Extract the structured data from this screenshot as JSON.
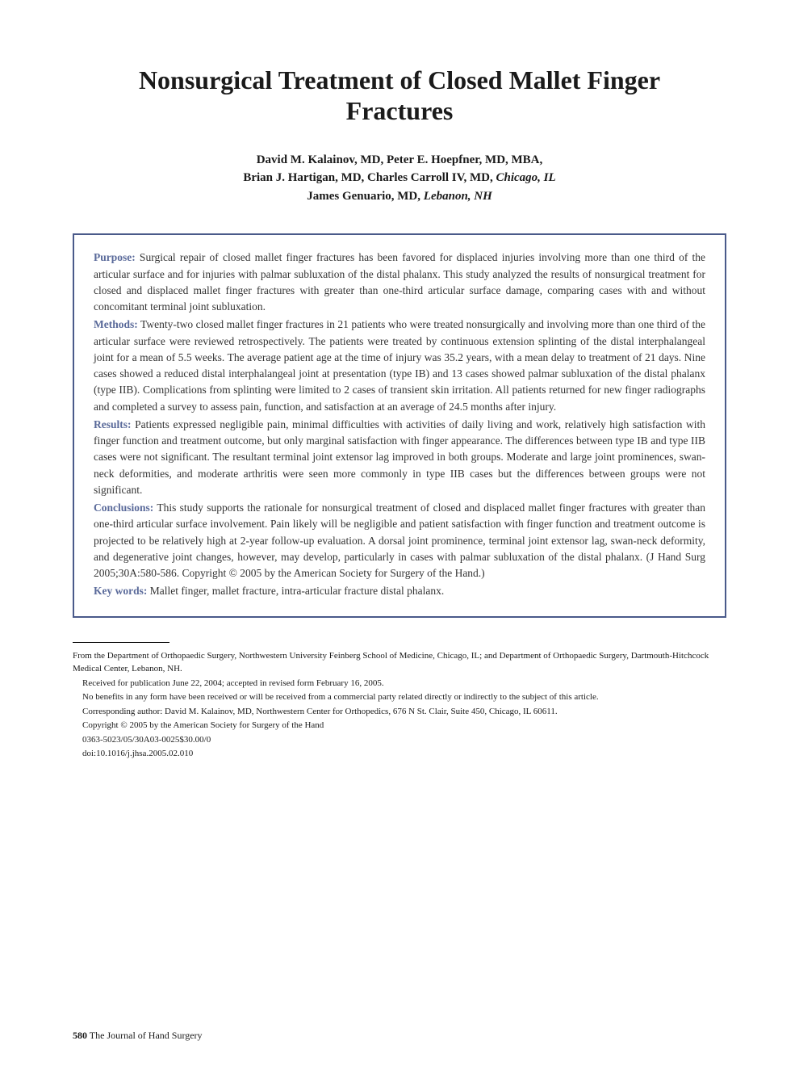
{
  "title": "Nonsurgical Treatment of Closed Mallet Finger Fractures",
  "authors": {
    "line1": "David M. Kalainov, MD, Peter E. Hoepfner, MD, MBA,",
    "line2_names": "Brian J. Hartigan, MD, Charles Carroll IV, MD, ",
    "line2_loc": "Chicago, IL",
    "line3_names": "James Genuario, MD, ",
    "line3_loc": "Lebanon, NH"
  },
  "abstract": {
    "purpose_label": "Purpose:",
    "purpose": " Surgical repair of closed mallet finger fractures has been favored for displaced injuries involving more than one third of the articular surface and for injuries with palmar subluxation of the distal phalanx. This study analyzed the results of nonsurgical treatment for closed and displaced mallet finger fractures with greater than one-third articular surface damage, comparing cases with and without concomitant terminal joint subluxation.",
    "methods_label": "Methods:",
    "methods": " Twenty-two closed mallet finger fractures in 21 patients who were treated nonsurgically and involving more than one third of the articular surface were reviewed retrospectively. The patients were treated by continuous extension splinting of the distal interphalangeal joint for a mean of 5.5 weeks. The average patient age at the time of injury was 35.2 years, with a mean delay to treatment of 21 days. Nine cases showed a reduced distal interphalangeal joint at presentation (type IB) and 13 cases showed palmar subluxation of the distal phalanx (type IIB). Complications from splinting were limited to 2 cases of transient skin irritation. All patients returned for new finger radiographs and completed a survey to assess pain, function, and satisfaction at an average of 24.5 months after injury.",
    "results_label": "Results:",
    "results": " Patients expressed negligible pain, minimal difficulties with activities of daily living and work, relatively high satisfaction with finger function and treatment outcome, but only marginal satisfaction with finger appearance. The differences between type IB and type IIB cases were not significant. The resultant terminal joint extensor lag improved in both groups. Moderate and large joint prominences, swan-neck deformities, and moderate arthritis were seen more commonly in type IIB cases but the differences between groups were not significant.",
    "conclusions_label": "Conclusions:",
    "conclusions": " This study supports the rationale for nonsurgical treatment of closed and displaced mallet finger fractures with greater than one-third articular surface involvement. Pain likely will be negligible and patient satisfaction with finger function and treatment outcome is projected to be relatively high at 2-year follow-up evaluation. A dorsal joint prominence, terminal joint extensor lag, swan-neck deformity, and degenerative joint changes, however, may develop, particularly in cases with palmar subluxation of the distal phalanx. (J Hand Surg 2005;30A:580-586. Copyright © 2005 by the American Society for Surgery of the Hand.)",
    "keywords_label": "Key words:",
    "keywords": " Mallet finger, mallet fracture, intra-articular fracture distal phalanx."
  },
  "footer": {
    "affiliation": "From the Department of Orthopaedic Surgery, Northwestern University Feinberg School of Medicine, Chicago, IL; and Department of Orthopaedic Surgery, Dartmouth-Hitchcock Medical Center, Lebanon, NH.",
    "received": "Received for publication June 22, 2004; accepted in revised form February 16, 2005.",
    "benefits": "No benefits in any form have been received or will be received from a commercial party related directly or indirectly to the subject of this article.",
    "corresponding": "Corresponding author: David M. Kalainov, MD, Northwestern Center for Orthopedics, 676 N St. Clair, Suite 450, Chicago, IL 60611.",
    "copyright": "Copyright © 2005 by the American Society for Surgery of the Hand",
    "code": "0363-5023/05/30A03-0025$30.00/0",
    "doi": "doi:10.1016/j.jhsa.2005.02.010"
  },
  "pageFooter": {
    "pageNum": "580",
    "journal": "The Journal of Hand Surgery"
  },
  "colors": {
    "border": "#4a5a8a",
    "label": "#5a6a9a",
    "text": "#1a1a1a",
    "bodytext": "#333333",
    "background": "#ffffff"
  },
  "typography": {
    "title_size": 32,
    "authors_size": 15,
    "abstract_size": 13.5,
    "footer_size": 11,
    "pagefooter_size": 12
  }
}
